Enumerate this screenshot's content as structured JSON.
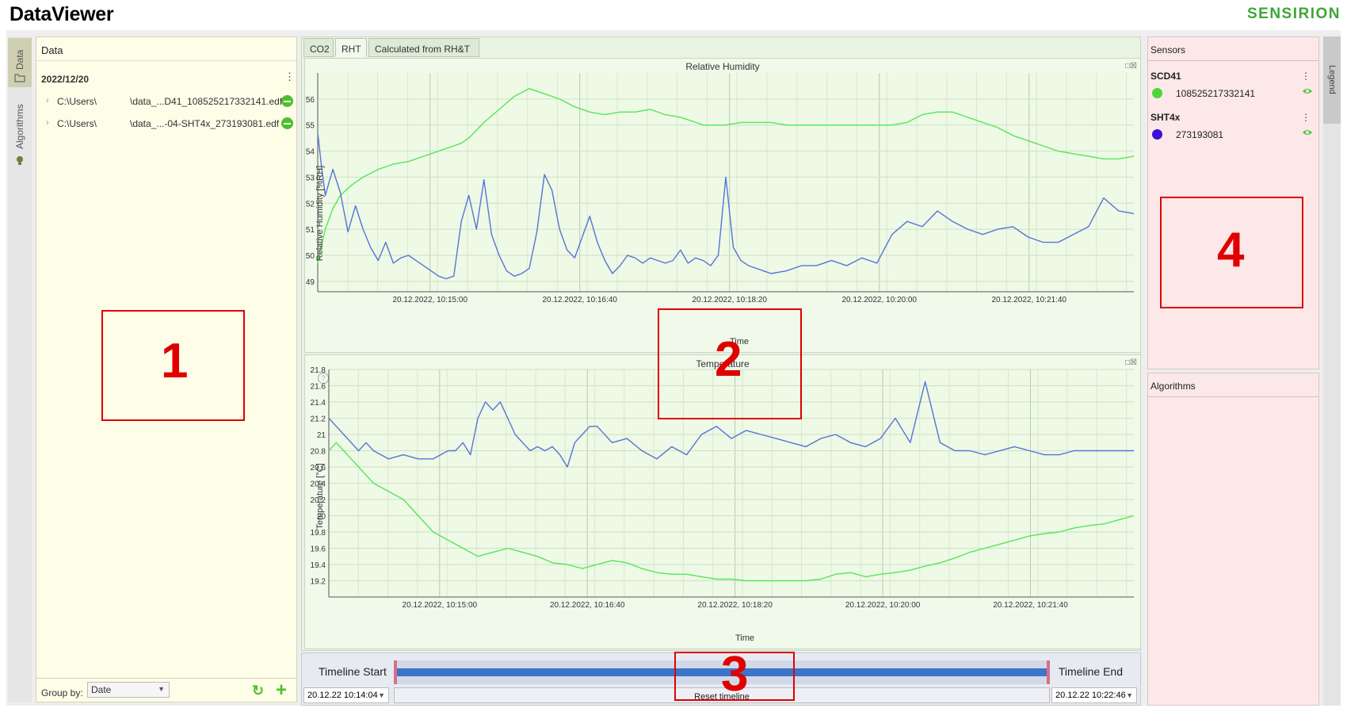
{
  "app": {
    "title": "DataViewer",
    "brand": "SENSIRION"
  },
  "left_tabs": [
    {
      "label": "Data",
      "icon": "folder-icon"
    },
    {
      "label": "Algorithms",
      "icon": "lightbulb-icon"
    }
  ],
  "data_panel": {
    "header": "Data",
    "group_date": "2022/12/20",
    "files": [
      {
        "path": "C:\\Users\\",
        "name": "\\data_...D41_108525217332141.edf"
      },
      {
        "path": "C:\\Users\\",
        "name": "\\data_...-04-SHT4x_273193081.edf"
      }
    ],
    "group_by_label": "Group by:",
    "group_by_value": "Date"
  },
  "plot_tabs": [
    {
      "label": "CO2"
    },
    {
      "label": "RHT"
    },
    {
      "label": "Calculated from RH&T"
    }
  ],
  "charts_text": {
    "rh_title": "Relative Humidity",
    "rh_ylabel": "Relative Humidity [%RH]",
    "rh_xlabel": "Time",
    "temp_title": "Temperature",
    "temp_ylabel": "Temperature [°C]",
    "temp_xlabel": "Time"
  },
  "chart_data": [
    {
      "type": "line",
      "title": "Relative Humidity",
      "xlabel": "Time",
      "ylabel": "Relative Humidity [%RH]",
      "ylim": [
        48.6,
        57.0
      ],
      "xlim": [
        "10:13:45",
        "10:22:50"
      ],
      "x_ticks": [
        "20.12.2022, 10:15:00",
        "20.12.2022, 10:16:40",
        "20.12.2022, 10:18:20",
        "20.12.2022, 10:20:00",
        "20.12.2022, 10:21:40"
      ],
      "y_ticks": [
        49,
        50,
        51,
        52,
        53,
        54,
        55,
        56
      ],
      "grid": true,
      "series": [
        {
          "color": "#57e657",
          "x_seconds": [
            0,
            5,
            10,
            20,
            30,
            45,
            60,
            80,
            100,
            120,
            140,
            160,
            170,
            180,
            190,
            200,
            210,
            220,
            240,
            260,
            280,
            300,
            320,
            340,
            360,
            380,
            400,
            420,
            440,
            460,
            480,
            490,
            500,
            510,
            520,
            540,
            560,
            580,
            600,
            620,
            640,
            660,
            680,
            700,
            720,
            740,
            760,
            780,
            800,
            820,
            840,
            860,
            880,
            900,
            920,
            940,
            960,
            980,
            1000,
            1020,
            1040,
            1060,
            1080
          ],
          "values": [
            49.7,
            50.4,
            51.0,
            51.8,
            52.3,
            52.7,
            53.0,
            53.3,
            53.5,
            53.6,
            53.8,
            54.0,
            54.1,
            54.2,
            54.3,
            54.5,
            54.8,
            55.1,
            55.6,
            56.1,
            56.4,
            56.2,
            56.0,
            55.7,
            55.5,
            55.4,
            55.5,
            55.5,
            55.6,
            55.4,
            55.3,
            55.2,
            55.1,
            55.0,
            55.0,
            55.0,
            55.1,
            55.1,
            55.1,
            55.0,
            55.0,
            55.0,
            55.0,
            55.0,
            55.0,
            55.0,
            55.0,
            55.1,
            55.4,
            55.5,
            55.5,
            55.3,
            55.1,
            54.9,
            54.6,
            54.4,
            54.2,
            54.0,
            53.9,
            53.8,
            53.7,
            53.7,
            53.8
          ]
        },
        {
          "color": "#5674d6",
          "x_seconds": [
            0,
            5,
            10,
            20,
            30,
            40,
            50,
            60,
            70,
            80,
            90,
            100,
            110,
            120,
            130,
            140,
            150,
            160,
            170,
            180,
            190,
            200,
            210,
            220,
            230,
            240,
            250,
            260,
            270,
            280,
            290,
            300,
            310,
            320,
            330,
            340,
            350,
            360,
            370,
            380,
            390,
            400,
            410,
            420,
            430,
            440,
            450,
            460,
            470,
            480,
            490,
            500,
            510,
            520,
            530,
            540,
            550,
            560,
            570,
            580,
            590,
            600,
            620,
            640,
            660,
            680,
            700,
            720,
            740,
            760,
            780,
            800,
            820,
            840,
            860,
            880,
            900,
            920,
            940,
            960,
            980,
            1000,
            1020,
            1040,
            1060,
            1080
          ],
          "values": [
            54.7,
            53.4,
            52.3,
            53.3,
            52.4,
            50.9,
            51.9,
            51.0,
            50.3,
            49.8,
            50.5,
            49.7,
            49.9,
            50.0,
            49.8,
            49.6,
            49.4,
            49.2,
            49.1,
            49.2,
            51.3,
            52.3,
            51.0,
            52.9,
            50.8,
            50.0,
            49.4,
            49.2,
            49.3,
            49.5,
            50.9,
            53.1,
            52.5,
            51.0,
            50.2,
            49.9,
            50.7,
            51.5,
            50.5,
            49.8,
            49.3,
            49.6,
            50.0,
            49.9,
            49.7,
            49.9,
            49.8,
            49.7,
            49.8,
            50.2,
            49.7,
            49.9,
            49.8,
            49.6,
            50.0,
            53.0,
            50.3,
            49.8,
            49.6,
            49.5,
            49.4,
            49.3,
            49.4,
            49.6,
            49.6,
            49.8,
            49.6,
            49.9,
            49.7,
            50.8,
            51.3,
            51.1,
            51.7,
            51.3,
            51.0,
            50.8,
            51.0,
            51.1,
            50.7,
            50.5,
            50.5,
            50.8,
            51.1,
            52.2,
            51.7,
            51.6
          ]
        }
      ]
    },
    {
      "type": "line",
      "title": "Temperature",
      "xlabel": "Time",
      "ylabel": "Temperature [°C]",
      "ylim": [
        19.0,
        21.8
      ],
      "xlim": [
        "10:13:45",
        "10:22:50"
      ],
      "x_ticks": [
        "20.12.2022, 10:15:00",
        "20.12.2022, 10:16:40",
        "20.12.2022, 10:18:20",
        "20.12.2022, 10:20:00",
        "20.12.2022, 10:21:40"
      ],
      "y_ticks": [
        "19.2",
        "19.4",
        "19.6",
        "19.8",
        "20",
        "20.2",
        "20.4",
        "20.6",
        "20.8",
        "21",
        "21.2",
        "21.4",
        "21.6",
        "21.8"
      ],
      "grid": true,
      "series": [
        {
          "color": "#57e657",
          "x_seconds": [
            0,
            10,
            20,
            30,
            40,
            50,
            60,
            80,
            100,
            120,
            140,
            160,
            180,
            200,
            220,
            240,
            260,
            280,
            300,
            320,
            340,
            360,
            380,
            400,
            420,
            440,
            460,
            480,
            500,
            520,
            540,
            560,
            580,
            600,
            620,
            640,
            660,
            680,
            700,
            720,
            740,
            760,
            780,
            800,
            820,
            840,
            860,
            880,
            900,
            920,
            940,
            960,
            980,
            1000,
            1020,
            1040,
            1060,
            1080
          ],
          "values": [
            20.8,
            20.9,
            20.8,
            20.7,
            20.6,
            20.5,
            20.4,
            20.3,
            20.2,
            20.0,
            19.8,
            19.7,
            19.6,
            19.5,
            19.55,
            19.6,
            19.55,
            19.5,
            19.42,
            19.4,
            19.35,
            19.4,
            19.45,
            19.42,
            19.35,
            19.3,
            19.28,
            19.28,
            19.25,
            19.22,
            19.22,
            19.2,
            19.2,
            19.2,
            19.2,
            19.2,
            19.22,
            19.28,
            19.3,
            19.25,
            19.28,
            19.3,
            19.33,
            19.38,
            19.42,
            19.48,
            19.55,
            19.6,
            19.65,
            19.7,
            19.75,
            19.78,
            19.8,
            19.85,
            19.88,
            19.9,
            19.95,
            20.0
          ]
        },
        {
          "color": "#5674d6",
          "x_seconds": [
            0,
            10,
            20,
            30,
            40,
            50,
            60,
            80,
            100,
            120,
            140,
            160,
            170,
            180,
            190,
            200,
            210,
            220,
            230,
            240,
            250,
            260,
            270,
            280,
            290,
            300,
            310,
            320,
            330,
            340,
            350,
            360,
            380,
            400,
            420,
            440,
            460,
            480,
            500,
            520,
            540,
            560,
            580,
            600,
            620,
            640,
            660,
            680,
            700,
            720,
            740,
            760,
            780,
            800,
            820,
            840,
            860,
            880,
            900,
            920,
            940,
            960,
            980,
            1000,
            1020,
            1040,
            1060,
            1080
          ],
          "values": [
            21.2,
            21.1,
            21.0,
            20.9,
            20.8,
            20.9,
            20.8,
            20.7,
            20.75,
            20.7,
            20.7,
            20.8,
            20.8,
            20.9,
            20.75,
            21.2,
            21.4,
            21.3,
            21.4,
            21.2,
            21.0,
            20.9,
            20.8,
            20.85,
            20.8,
            20.85,
            20.75,
            20.6,
            20.9,
            21.0,
            21.1,
            21.1,
            20.9,
            20.95,
            20.8,
            20.7,
            20.85,
            20.75,
            21.0,
            21.1,
            20.95,
            21.05,
            21.0,
            20.95,
            20.9,
            20.85,
            20.95,
            21.0,
            20.9,
            20.85,
            20.95,
            21.2,
            20.9,
            21.65,
            20.9,
            20.8,
            20.8,
            20.75,
            20.8,
            20.85,
            20.8,
            20.75,
            20.75,
            20.8,
            20.8,
            20.8,
            20.8,
            20.8
          ]
        }
      ]
    }
  ],
  "timeline": {
    "start_label": "Timeline Start",
    "end_label": "Timeline End",
    "start_value": "20.12.22 10:14:04",
    "end_value": "20.12.22 10:22:46",
    "reset_label": "Reset timeline"
  },
  "sensors": {
    "header": "Sensors",
    "groups": [
      {
        "name": "SCD41",
        "id": "108525217332141",
        "color": "#4cd63a"
      },
      {
        "name": "SHT4x",
        "id": "273193081",
        "color": "#3b10d6"
      }
    ]
  },
  "algorithms": {
    "header": "Algorithms"
  },
  "legend": {
    "label": "Legend"
  },
  "annotations": [
    "1",
    "2",
    "3",
    "4"
  ]
}
